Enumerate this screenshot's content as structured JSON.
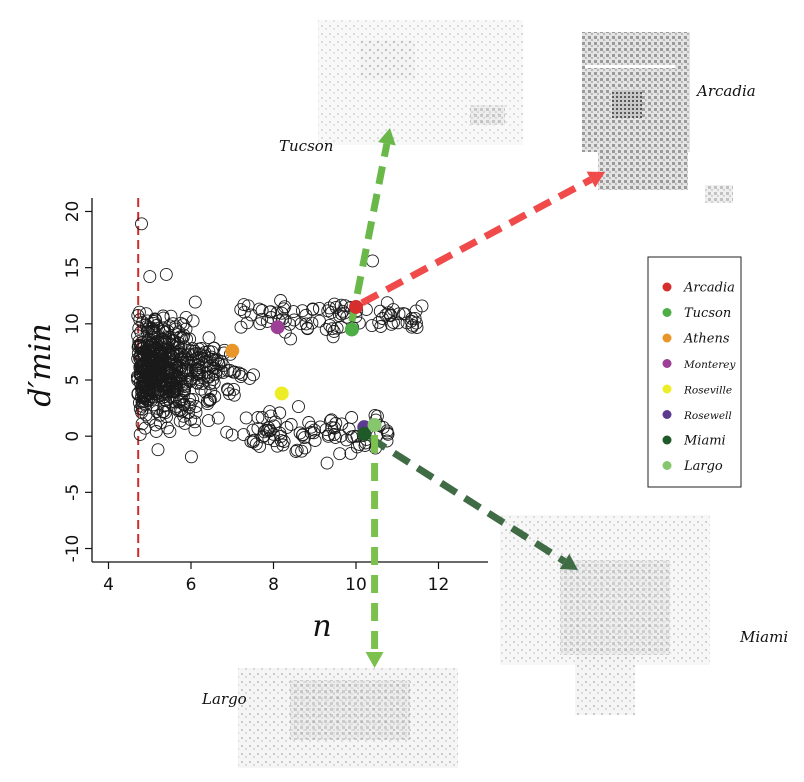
{
  "chart_data": {
    "type": "scatter",
    "xlabel": "n",
    "ylabel": "d′min",
    "xlim": [
      3.6,
      13.2
    ],
    "ylim": [
      -11.2,
      21.2
    ],
    "xticks": [
      4,
      6,
      8,
      10,
      12
    ],
    "yticks": [
      -10,
      -5,
      0,
      5,
      10,
      15,
      20
    ],
    "grid": false,
    "threshold_line": {
      "x": 4.72,
      "color": "#cc2b2b",
      "style": "dashed"
    },
    "highlighted": [
      {
        "name": "Arcadia",
        "color": "#d62d2d",
        "x": 10.0,
        "y": 11.5
      },
      {
        "name": "Tucson",
        "color": "#4cae45",
        "x": 9.9,
        "y": 9.5
      },
      {
        "name": "Athens",
        "color": "#e8962a",
        "x": 7.0,
        "y": 7.6
      },
      {
        "name": "Monterey",
        "color": "#9d3f97",
        "x": 8.1,
        "y": 9.7
      },
      {
        "name": "Roseville",
        "color": "#eded27",
        "x": 8.2,
        "y": 3.8
      },
      {
        "name": "Rosewell",
        "color": "#5c3a8f",
        "x": 10.2,
        "y": 0.8
      },
      {
        "name": "Miami",
        "color": "#1f5a28",
        "x": 10.2,
        "y": 0.2
      },
      {
        "name": "Largo",
        "color": "#86c76e",
        "x": 10.45,
        "y": 1.0
      }
    ],
    "legend": {
      "placement": "right",
      "entries": [
        "Arcadia",
        "Tucson",
        "Athens",
        "Monterey",
        "Roseville",
        "Rosewell",
        "Miami",
        "Largo"
      ]
    }
  },
  "map_labels": {
    "tucson": "Tucson",
    "arcadia": "Arcadia",
    "miami": "Miami",
    "largo": "Largo"
  },
  "arrow_colors": {
    "tucson": "#6ab84a",
    "arcadia": "#f04a4a",
    "miami": "#3f6b45",
    "largo": "#7cc04e"
  }
}
